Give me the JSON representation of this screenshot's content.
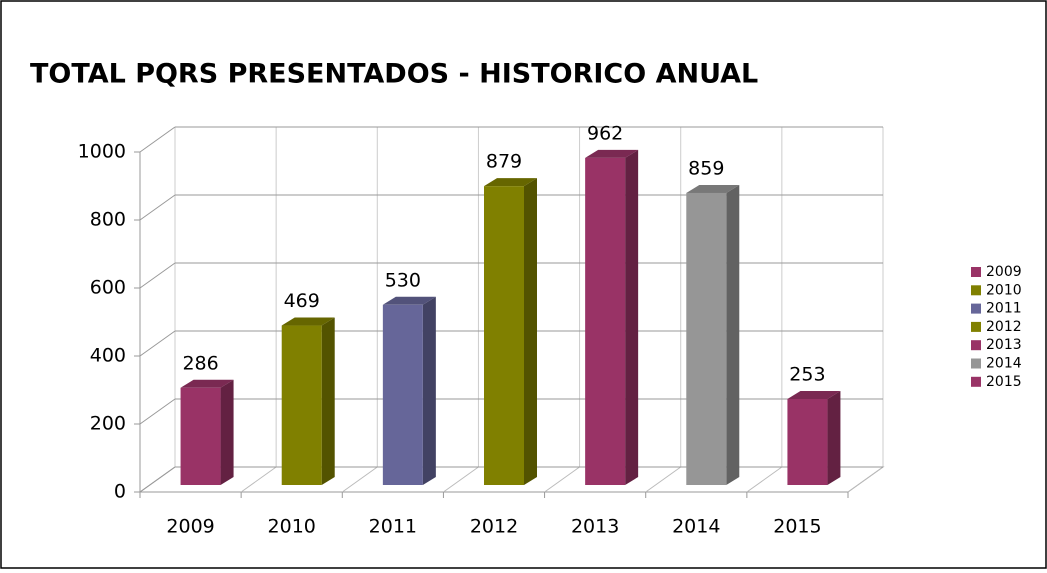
{
  "chart_data": {
    "type": "bar3d",
    "title": "TOTAL PQRS PRESENTADOS - HISTORICO ANUAL",
    "categories": [
      "2009",
      "2010",
      "2011",
      "2012",
      "2013",
      "2014",
      "2015"
    ],
    "values": [
      286,
      469,
      530,
      879,
      962,
      859,
      253
    ],
    "colors": [
      "#993366",
      "#808000",
      "#666699",
      "#808000",
      "#993366",
      "#969696",
      "#993366"
    ],
    "ylim": [
      0,
      1000
    ],
    "yticks": [
      0,
      200,
      400,
      600,
      800,
      1000
    ],
    "grid": true,
    "legend": "right"
  }
}
